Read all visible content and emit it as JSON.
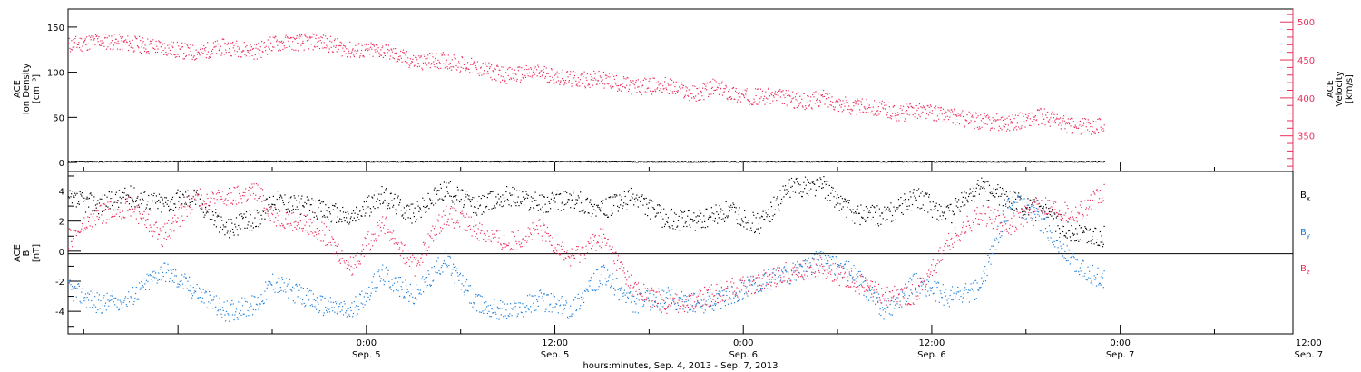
{
  "chart_data": [
    {
      "type": "scatter",
      "panel": "top",
      "ylabel_left": [
        "ACE",
        "Ion Density",
        "[cm⁻³]"
      ],
      "ylabel_right": [
        "ACE",
        "Velocity",
        "[km/s]"
      ],
      "left_axis": {
        "ylim": [
          -10,
          170
        ],
        "ticks": [
          0,
          50,
          100,
          150
        ]
      },
      "right_axis": {
        "ylim": [
          303,
          517
        ],
        "ticks": [
          350,
          400,
          450,
          500
        ],
        "color": "#e8305c"
      },
      "series": [
        {
          "axis": "right",
          "color": "#e8305c",
          "x_hours": [
            0,
            2,
            4,
            6,
            8,
            10,
            12,
            13,
            16,
            18,
            20,
            22,
            24,
            26,
            28,
            30,
            32,
            34,
            36,
            38,
            40,
            41,
            43,
            45,
            47,
            48,
            50,
            51,
            53,
            54,
            56,
            58,
            60,
            62,
            63,
            64,
            66
          ],
          "values": [
            470,
            476,
            472,
            467,
            460,
            468,
            462,
            472,
            475,
            463,
            463,
            448,
            450,
            440,
            430,
            434,
            425,
            425,
            415,
            417,
            405,
            415,
            402,
            403,
            395,
            401,
            388,
            390,
            380,
            385,
            377,
            370,
            368,
            376,
            370,
            362,
            365
          ]
        },
        {
          "axis": "left",
          "color": "#000000",
          "x_hours": [
            0,
            10,
            20,
            30,
            40,
            50,
            60,
            66
          ],
          "values": [
            1.5,
            1.8,
            1.5,
            1.6,
            1.4,
            1.6,
            1.4,
            1.5
          ]
        }
      ]
    },
    {
      "type": "scatter",
      "panel": "bottom",
      "ylabel_left": [
        "ACE",
        "B",
        "[nT]"
      ],
      "ylim": [
        -5.5,
        5.3
      ],
      "ticks": [
        -4,
        -2,
        0,
        2,
        4
      ],
      "zero_line": true,
      "legend": "right",
      "series": [
        {
          "name": "B",
          "subscript": "x",
          "color": "#000000",
          "x_hours": [
            0,
            2,
            4,
            6,
            8,
            10,
            12,
            13,
            16,
            18,
            20,
            22,
            24,
            26,
            28,
            30,
            32,
            34,
            36,
            38,
            40,
            42,
            44,
            46,
            48,
            50,
            52,
            54,
            56,
            58,
            60,
            62,
            64,
            66
          ],
          "values": [
            3.4,
            3.2,
            3.7,
            3.2,
            3.7,
            1.5,
            2.2,
            3.5,
            2.8,
            2.2,
            3.7,
            2.5,
            4.2,
            3.0,
            3.8,
            3.2,
            3.5,
            2.8,
            3.6,
            2.2,
            2.0,
            2.7,
            1.8,
            4.3,
            4.4,
            2.5,
            2.4,
            3.6,
            2.4,
            4.3,
            3.4,
            2.6,
            1.2,
            1.0
          ]
        },
        {
          "name": "B",
          "subscript": "y",
          "color": "#1f7fd8",
          "x_hours": [
            0,
            2,
            4,
            6,
            8,
            10,
            12,
            13,
            16,
            18,
            20,
            22,
            24,
            26,
            28,
            30,
            32,
            34,
            36,
            38,
            40,
            42,
            44,
            46,
            48,
            50,
            52,
            54,
            56,
            58,
            60,
            62,
            64,
            66
          ],
          "values": [
            -2.5,
            -3.5,
            -3.0,
            -1.2,
            -2.5,
            -4.0,
            -3.5,
            -2.0,
            -3.5,
            -4.0,
            -1.5,
            -3.0,
            -0.5,
            -3.5,
            -4.0,
            -3.2,
            -3.8,
            -1.5,
            -3.5,
            -3.0,
            -3.5,
            -3.0,
            -2.0,
            -1.5,
            -0.5,
            -1.5,
            -4.0,
            -2.0,
            -3.0,
            -2.5,
            3.5,
            2.0,
            -0.8,
            -2.0
          ]
        },
        {
          "name": "B",
          "subscript": "z",
          "color": "#e8305c",
          "x_hours": [
            0,
            2,
            4,
            6,
            8,
            10,
            12,
            13,
            16,
            18,
            20,
            22,
            24,
            26,
            28,
            30,
            32,
            34,
            36,
            38,
            40,
            42,
            44,
            46,
            48,
            50,
            52,
            54,
            56,
            58,
            60,
            62,
            64,
            66
          ],
          "values": [
            0.8,
            2.5,
            3.0,
            1.0,
            3.5,
            3.5,
            4.0,
            2.5,
            1.5,
            -1.0,
            2.0,
            -1.0,
            2.5,
            1.5,
            0.5,
            1.5,
            -0.5,
            1.0,
            -2.5,
            -3.5,
            -3.2,
            -2.5,
            -2.0,
            -1.3,
            -1.0,
            -2.0,
            -3.0,
            -2.8,
            0.5,
            2.5,
            1.8,
            3.2,
            2.5,
            3.8
          ]
        }
      ]
    },
    {
      "type": "time_axis",
      "ticks": [
        {
          "time": "0:00",
          "date": "Sep. 5"
        },
        {
          "time": "12:00",
          "date": "Sep. 5"
        },
        {
          "time": "0:00",
          "date": "Sep. 6"
        },
        {
          "time": "12:00",
          "date": "Sep. 6"
        },
        {
          "time": "0:00",
          "date": "Sep. 7"
        },
        {
          "time": "12:00",
          "date": "Sep. 7"
        }
      ],
      "xlabel": "hours:minutes, Sep.  4, 2013 - Sep.  7, 2013"
    }
  ]
}
